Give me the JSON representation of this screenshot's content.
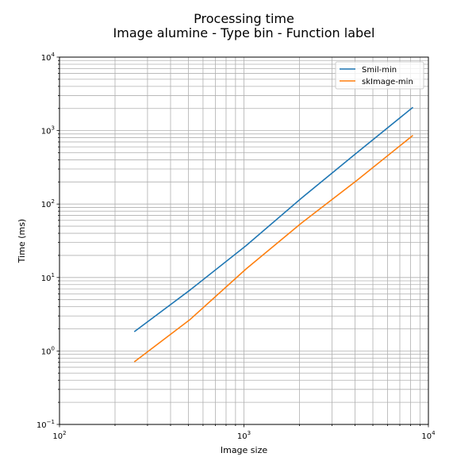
{
  "chart_data": {
    "type": "line",
    "title": [
      "Processing time",
      "Image alumine - Type bin - Function label"
    ],
    "xlabel": "Image size",
    "ylabel": "Time (ms)",
    "xscale": "log",
    "yscale": "log",
    "xlim": [
      100,
      10000
    ],
    "ylim": [
      0.1,
      10000
    ],
    "grid": true,
    "legend_position": "top-right",
    "x_ticks": [
      {
        "value": 100,
        "base": "10",
        "exp": "2"
      },
      {
        "value": 1000,
        "base": "10",
        "exp": "3"
      },
      {
        "value": 10000,
        "base": "10",
        "exp": "4"
      }
    ],
    "y_ticks": [
      {
        "value": 0.1,
        "base": "10",
        "exp": "−1"
      },
      {
        "value": 1,
        "base": "10",
        "exp": "0"
      },
      {
        "value": 10,
        "base": "10",
        "exp": "1"
      },
      {
        "value": 100,
        "base": "10",
        "exp": "2"
      },
      {
        "value": 1000,
        "base": "10",
        "exp": "3"
      },
      {
        "value": 10000,
        "base": "10",
        "exp": "4"
      }
    ],
    "series": [
      {
        "name": "Smil-min",
        "color": "#1f77b4",
        "x": [
          256,
          512,
          1024,
          2048,
          4096,
          8192
        ],
        "y": [
          1.85,
          6.8,
          27,
          120,
          500,
          2050
        ]
      },
      {
        "name": "skImage-min",
        "color": "#ff7f0e",
        "x": [
          256,
          512,
          1024,
          2048,
          4096,
          8192
        ],
        "y": [
          0.72,
          2.7,
          13,
          55,
          210,
          850
        ]
      }
    ]
  }
}
